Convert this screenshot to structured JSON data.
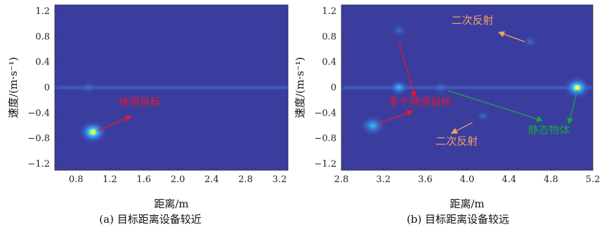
{
  "colors": {
    "background_field": "#3a3d9e",
    "zero_velocity_line": "#3f6fd0",
    "target_red": "#e8162a",
    "reflection_orange": "#f0a060",
    "static_green": "#1aa34a"
  },
  "chart_data": [
    {
      "type": "heatmap",
      "caption": "(a) 目标距离设备较近",
      "xlabel": "距离/m",
      "ylabel": "速度/(m·s⁻¹)",
      "xlim": [
        0.55,
        3.3
      ],
      "ylim": [
        -1.3,
        1.3
      ],
      "xticks": [
        0.8,
        1.2,
        1.6,
        2.0,
        2.4,
        2.8,
        3.2
      ],
      "xtick_labels": [
        "0.8",
        "1.2",
        "1.6",
        "2.0",
        "2.4",
        "2.8",
        "3.2"
      ],
      "yticks": [
        1.2,
        0.8,
        0.4,
        0,
        -0.4,
        -0.8,
        -1.2
      ],
      "ytick_labels": [
        "1.2",
        "0.8",
        "0.4",
        "0",
        "−0.4",
        "−0.8",
        "−1.2"
      ],
      "hotspots": [
        {
          "x": 1.0,
          "y": -0.7,
          "intensity": 1.0
        },
        {
          "x": 0.95,
          "y": 0.0,
          "intensity": 0.3
        }
      ],
      "annotations": [
        {
          "text": "待测目标",
          "color": "#e8162a",
          "x": 1.55,
          "y": -0.28
        }
      ],
      "arrows": [
        {
          "from": [
            1.05,
            -0.68
          ],
          "to": [
            1.45,
            -0.45
          ],
          "color": "#e8162a"
        }
      ]
    },
    {
      "type": "heatmap",
      "caption": "(b) 目标距离设备较远",
      "xlabel": "距离/m",
      "ylabel": "速度/(m·s⁻¹)",
      "xlim": [
        2.8,
        5.2
      ],
      "ylim": [
        -1.3,
        1.3
      ],
      "xticks": [
        2.8,
        3.2,
        3.6,
        4.0,
        4.4,
        4.8,
        5.2
      ],
      "xtick_labels": [
        "2.8",
        "3.2",
        "3.6",
        "4.0",
        "4.4",
        "4.8",
        "5.2"
      ],
      "yticks": [
        1.2,
        0.8,
        0.4,
        0,
        -0.4,
        -0.8,
        -1.2
      ],
      "ytick_labels": [
        "1.2",
        "0.8",
        "0.4",
        "0",
        "−0.4",
        "−0.8",
        "−1.2"
      ],
      "hotspots": [
        {
          "x": 3.1,
          "y": -0.6,
          "intensity": 0.8
        },
        {
          "x": 3.35,
          "y": 0.9,
          "intensity": 0.4
        },
        {
          "x": 4.6,
          "y": 0.72,
          "intensity": 0.25
        },
        {
          "x": 4.15,
          "y": -0.45,
          "intensity": 0.2
        },
        {
          "x": 5.05,
          "y": 0.0,
          "intensity": 0.9
        },
        {
          "x": 3.75,
          "y": 0.0,
          "intensity": 0.4
        },
        {
          "x": 3.35,
          "y": 0.0,
          "intensity": 0.5
        }
      ],
      "annotations": [
        {
          "text": "二次反射",
          "color": "#f0a060",
          "x": 4.05,
          "y": 1.0
        },
        {
          "text": "多个待测目标",
          "color": "#e8162a",
          "x": 3.55,
          "y": -0.28
        },
        {
          "text": "二次反射",
          "color": "#f0a060",
          "x": 3.9,
          "y": -0.9
        },
        {
          "text": "静态物体",
          "color": "#1aa34a",
          "x": 4.78,
          "y": -0.72
        }
      ],
      "arrows": [
        {
          "from": [
            4.55,
            0.72
          ],
          "to": [
            4.3,
            0.87
          ],
          "color": "#f0a060"
        },
        {
          "from": [
            3.35,
            0.72
          ],
          "to": [
            3.5,
            -0.15
          ],
          "color": "#e8162a"
        },
        {
          "from": [
            3.15,
            -0.57
          ],
          "to": [
            3.48,
            -0.37
          ],
          "color": "#e8162a"
        },
        {
          "from": [
            4.05,
            -0.55
          ],
          "to": [
            3.85,
            -0.72
          ],
          "color": "#f0a060"
        },
        {
          "from": [
            3.82,
            -0.05
          ],
          "to": [
            4.72,
            -0.52
          ],
          "color": "#1aa34a"
        },
        {
          "from": [
            5.05,
            -0.05
          ],
          "to": [
            4.97,
            -0.57
          ],
          "color": "#1aa34a"
        }
      ]
    }
  ]
}
